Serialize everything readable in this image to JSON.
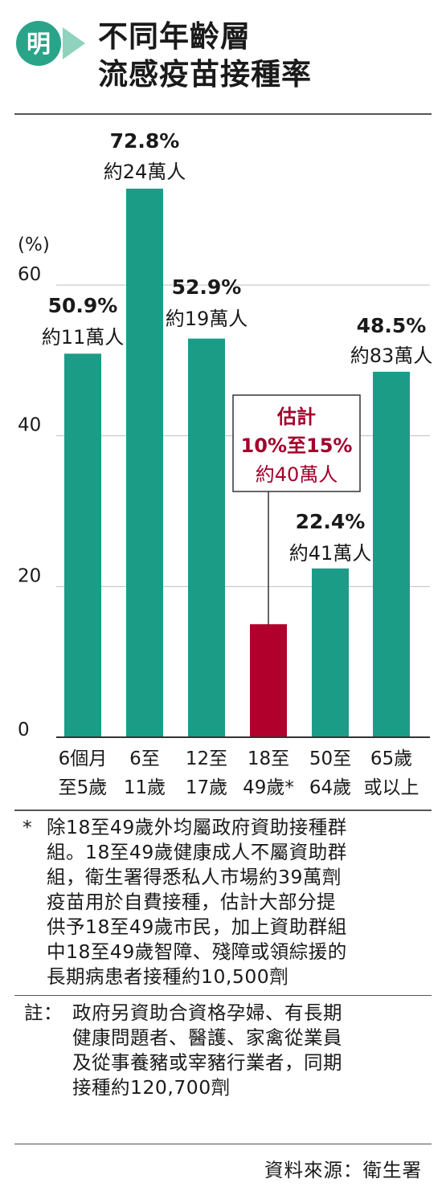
{
  "logo": {
    "char": "明",
    "accent_color": "#2aa489"
  },
  "title": {
    "line1": "不同年齡層",
    "line2": "流感疫苗接種率"
  },
  "chart_data": {
    "type": "bar",
    "yunit": "(%)",
    "ylim": [
      0,
      75
    ],
    "yticks": [
      0,
      20,
      40,
      60
    ],
    "grid": true,
    "categories": [
      {
        "line1": "6個月",
        "line2": "至5歲"
      },
      {
        "line1": "6至",
        "line2": "11歲"
      },
      {
        "line1": "12至",
        "line2": "17歲"
      },
      {
        "line1": "18至",
        "line2": "49歲*"
      },
      {
        "line1": "50至",
        "line2": "64歲"
      },
      {
        "line1": "65歲",
        "line2": "或以上"
      }
    ],
    "values": [
      50.9,
      72.8,
      52.9,
      15,
      22.4,
      48.5
    ],
    "pct_labels": [
      "50.9%",
      "72.8%",
      "52.9%",
      "",
      "22.4%",
      "48.5%"
    ],
    "count_labels": [
      "約11萬人",
      "約24萬人",
      "約19萬人",
      "",
      "約41萬人",
      "約83萬人"
    ],
    "estimate_callout": {
      "line1": "估計",
      "line2": "10%至15%",
      "line3": "約40萬人"
    },
    "colors": {
      "bar": "#1a9c87",
      "highlight": "#b0002b",
      "highlight_text": "#a3002c",
      "grid": "#bfbfbf"
    }
  },
  "footnote": {
    "mark": "*",
    "lines": [
      "除18至49歲外均屬政府資助接種群",
      "組。18至49歲健康成人不屬資助群",
      "組，衛生署得悉私人市場約39萬劑",
      "疫苗用於自費接種，估計大部分提",
      "供予18至49歲市民，加上資助群組",
      "中18至49歲智障、殘障或領綜援的",
      "長期病患者接種約10,500劑"
    ]
  },
  "note": {
    "head": "註：",
    "lines": [
      "政府另資助合資格孕婦、有長期",
      "健康問題者、醫護、家禽從業員",
      "及從事養豬或宰豬行業者，同期",
      "接種約120,700劑"
    ]
  },
  "source": "資料來源：衛生署"
}
